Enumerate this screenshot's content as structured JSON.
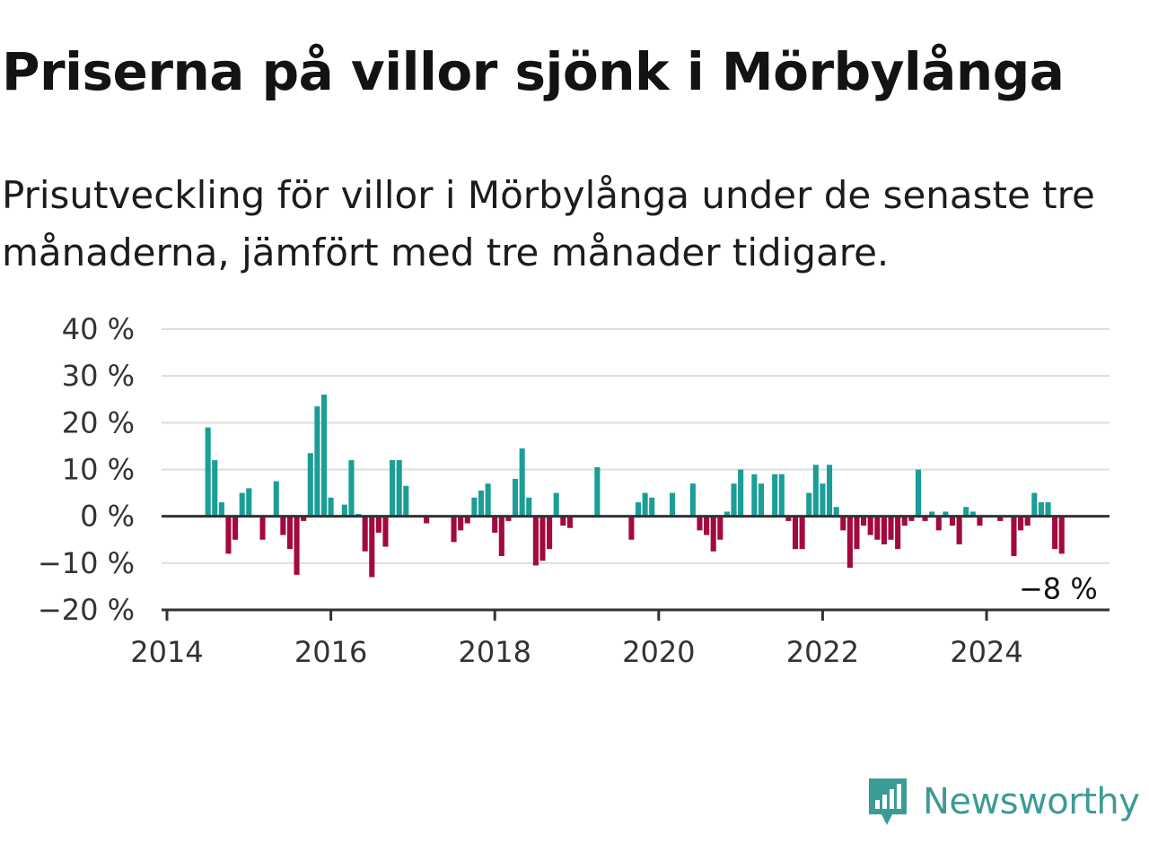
{
  "title": "Priserna på villor sjönk i Mörbylånga",
  "subtitle": "Prisutveckling för villor i Mörbylånga under de senaste tre månaderna, jämfört med tre månader tidigare.",
  "brand": {
    "name": "Newsworthy",
    "color": "#3d9b96"
  },
  "colors": {
    "positive": "#1a9e97",
    "negative": "#a3093f",
    "grid": "#dddddd",
    "axis": "#333333",
    "text": "#333333"
  },
  "chart_data": {
    "type": "bar",
    "xlabel": "",
    "ylabel": "",
    "ylim": [
      -20,
      40
    ],
    "y_ticks": [
      {
        "value": 40,
        "label": "40 %"
      },
      {
        "value": 30,
        "label": "30 %"
      },
      {
        "value": 20,
        "label": "20 %"
      },
      {
        "value": 10,
        "label": "10 %"
      },
      {
        "value": 0,
        "label": "0 %"
      },
      {
        "value": -10,
        "label": "−10 %"
      },
      {
        "value": -20,
        "label": "−20 %"
      }
    ],
    "x_ticks": [
      "2014",
      "2016",
      "2018",
      "2020",
      "2022",
      "2024"
    ],
    "x_range": [
      "2014-01",
      "2025-07"
    ],
    "grid": true,
    "last_value_label": "−8 %",
    "series": [
      {
        "values": [
          [
            "2014-07",
            19
          ],
          [
            "2014-08",
            12
          ],
          [
            "2014-09",
            3
          ],
          [
            "2014-10",
            -8
          ],
          [
            "2014-11",
            -5
          ],
          [
            "2014-12",
            5
          ],
          [
            "2015-01",
            6
          ],
          [
            "2015-03",
            -5
          ],
          [
            "2015-05",
            7.5
          ],
          [
            "2015-06",
            -4
          ],
          [
            "2015-07",
            -7
          ],
          [
            "2015-08",
            -12.5
          ],
          [
            "2015-09",
            -1
          ],
          [
            "2015-10",
            13.5
          ],
          [
            "2015-11",
            23.5
          ],
          [
            "2015-12",
            26
          ],
          [
            "2016-01",
            4
          ],
          [
            "2016-03",
            2.5
          ],
          [
            "2016-04",
            12
          ],
          [
            "2016-05",
            0.5
          ],
          [
            "2016-06",
            -7.5
          ],
          [
            "2016-07",
            -13
          ],
          [
            "2016-08",
            -3.5
          ],
          [
            "2016-09",
            -6.5
          ],
          [
            "2016-10",
            12
          ],
          [
            "2016-11",
            12
          ],
          [
            "2016-12",
            6.5
          ],
          [
            "2017-03",
            -1.5
          ],
          [
            "2017-07",
            -5.5
          ],
          [
            "2017-08",
            -3
          ],
          [
            "2017-09",
            -1.5
          ],
          [
            "2017-10",
            4
          ],
          [
            "2017-11",
            5.5
          ],
          [
            "2017-12",
            7
          ],
          [
            "2018-01",
            -3.5
          ],
          [
            "2018-02",
            -8.5
          ],
          [
            "2018-03",
            -1
          ],
          [
            "2018-04",
            8
          ],
          [
            "2018-05",
            14.5
          ],
          [
            "2018-06",
            4
          ],
          [
            "2018-07",
            -10.5
          ],
          [
            "2018-08",
            -9.5
          ],
          [
            "2018-09",
            -7
          ],
          [
            "2018-10",
            5
          ],
          [
            "2018-11",
            -2
          ],
          [
            "2018-12",
            -2.5
          ],
          [
            "2019-04",
            10.5
          ],
          [
            "2019-09",
            -5
          ],
          [
            "2019-10",
            3
          ],
          [
            "2019-11",
            5
          ],
          [
            "2019-12",
            4
          ],
          [
            "2020-03",
            5
          ],
          [
            "2020-06",
            7
          ],
          [
            "2020-07",
            -3
          ],
          [
            "2020-08",
            -4
          ],
          [
            "2020-09",
            -7.5
          ],
          [
            "2020-10",
            -5
          ],
          [
            "2020-11",
            1
          ],
          [
            "2020-12",
            7
          ],
          [
            "2021-01",
            10
          ],
          [
            "2021-03",
            9
          ],
          [
            "2021-04",
            7
          ],
          [
            "2021-06",
            9
          ],
          [
            "2021-07",
            9
          ],
          [
            "2021-08",
            -1
          ],
          [
            "2021-09",
            -7
          ],
          [
            "2021-10",
            -7
          ],
          [
            "2021-11",
            5
          ],
          [
            "2021-12",
            11
          ],
          [
            "2022-01",
            7
          ],
          [
            "2022-02",
            11
          ],
          [
            "2022-03",
            2
          ],
          [
            "2022-04",
            -3
          ],
          [
            "2022-05",
            -11
          ],
          [
            "2022-06",
            -7
          ],
          [
            "2022-07",
            -2
          ],
          [
            "2022-08",
            -4
          ],
          [
            "2022-09",
            -5
          ],
          [
            "2022-10",
            -6
          ],
          [
            "2022-11",
            -5
          ],
          [
            "2022-12",
            -7
          ],
          [
            "2023-01",
            -2
          ],
          [
            "2023-02",
            -1
          ],
          [
            "2023-03",
            10
          ],
          [
            "2023-04",
            -1
          ],
          [
            "2023-05",
            1
          ],
          [
            "2023-06",
            -3
          ],
          [
            "2023-07",
            1
          ],
          [
            "2023-08",
            -2
          ],
          [
            "2023-09",
            -6
          ],
          [
            "2023-10",
            2
          ],
          [
            "2023-11",
            1
          ],
          [
            "2023-12",
            -2
          ],
          [
            "2024-03",
            -1
          ],
          [
            "2024-05",
            -8.5
          ],
          [
            "2024-06",
            -3
          ],
          [
            "2024-07",
            -2
          ],
          [
            "2024-08",
            5
          ],
          [
            "2024-09",
            3
          ],
          [
            "2024-10",
            3
          ],
          [
            "2024-11",
            -7
          ],
          [
            "2024-12",
            -8
          ]
        ]
      }
    ]
  }
}
